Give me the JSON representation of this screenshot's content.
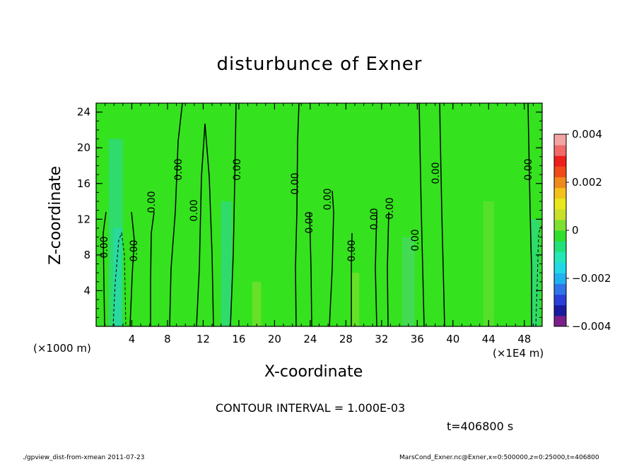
{
  "chart_data": {
    "type": "heatmap",
    "title": "disturbunce of Exner",
    "xlabel": "X-coordinate",
    "ylabel": "Z-coordinate",
    "x_unit_label": "(×1000 m)",
    "x_scale_label": "(×1E4 m)",
    "xlim": [
      0,
      50
    ],
    "ylim": [
      0,
      25
    ],
    "x_ticks": [
      4,
      8,
      12,
      16,
      20,
      24,
      28,
      32,
      36,
      40,
      44,
      48
    ],
    "y_ticks": [
      4,
      8,
      12,
      16,
      20,
      24
    ],
    "colorbar": {
      "range": [
        -0.004,
        0.004
      ],
      "tick_labels": [
        "0.004",
        "0.002",
        "0",
        "−0.002",
        "−0.004"
      ],
      "tick_values": [
        0.004,
        0.002,
        0,
        -0.002,
        -0.004
      ],
      "colors": [
        "#7a1f8a",
        "#1a1aa0",
        "#2a3fd8",
        "#2f74e8",
        "#22b0f0",
        "#22d8e6",
        "#22e8b8",
        "#22e07a",
        "#2ee02e",
        "#7ee02e",
        "#c8e02a",
        "#e8e81e",
        "#f2c21a",
        "#f08a1a",
        "#f04a1a",
        "#ee1e1e",
        "#f06a6a",
        "#f4a4a4"
      ]
    },
    "contour_labels": [
      "0.00",
      "0.00",
      "0.00",
      "0.00",
      "0.00",
      "0.00",
      "0.00",
      "0.00",
      "0.00",
      "0.00",
      "0.00",
      "0.00",
      "0.00",
      "0.00",
      "0.00",
      "0.00",
      "0.00"
    ],
    "contour_interval": "CONTOUR INTERVAL = 1.000E-03",
    "time_label": "t=406800 s"
  },
  "footer": {
    "left": "./gpview_dist-from-xmean  2011-07-23",
    "right": "MarsCond_Exner.nc@Exner,x=0:500000,z=0:25000,t=406800"
  }
}
